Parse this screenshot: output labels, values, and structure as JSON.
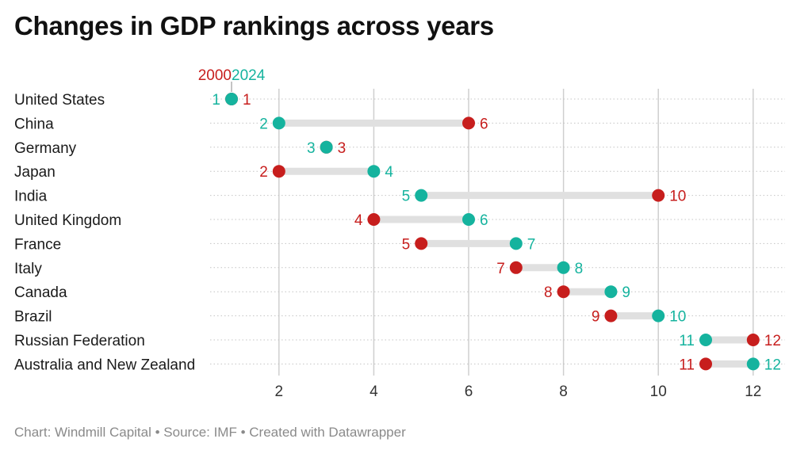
{
  "title": "Changes in GDP rankings across years",
  "footer": "Chart: Windmill Capital • Source: IMF • Created with Datawrapper",
  "colors": {
    "series_2000": "#c71e1d",
    "series_2024": "#15b39e",
    "connector": "#e0e0e0",
    "gridline": "#cfcfcf"
  },
  "chart_data": {
    "type": "dumbbell",
    "title": "Changes in GDP rankings across years",
    "series": [
      {
        "name": "2000",
        "color": "#c71e1d"
      },
      {
        "name": "2024",
        "color": "#15b39e"
      }
    ],
    "xlim": [
      1,
      12
    ],
    "xticks": [
      2,
      4,
      6,
      8,
      10,
      12
    ],
    "grid": "vertical",
    "legend": "top-left",
    "rows": [
      {
        "category": "United States",
        "y2000": 1,
        "y2024": 1
      },
      {
        "category": "China",
        "y2000": 6,
        "y2024": 2
      },
      {
        "category": "Germany",
        "y2000": 3,
        "y2024": 3
      },
      {
        "category": "Japan",
        "y2000": 2,
        "y2024": 4
      },
      {
        "category": "India",
        "y2000": 10,
        "y2024": 5
      },
      {
        "category": "United Kingdom",
        "y2000": 4,
        "y2024": 6
      },
      {
        "category": "France",
        "y2000": 5,
        "y2024": 7
      },
      {
        "category": "Italy",
        "y2000": 7,
        "y2024": 8
      },
      {
        "category": "Canada",
        "y2000": 8,
        "y2024": 9
      },
      {
        "category": "Brazil",
        "y2000": 9,
        "y2024": 10
      },
      {
        "category": "Russian Federation",
        "y2000": 12,
        "y2024": 11
      },
      {
        "category": "Australia and New Zealand",
        "y2000": 11,
        "y2024": 12
      }
    ]
  }
}
